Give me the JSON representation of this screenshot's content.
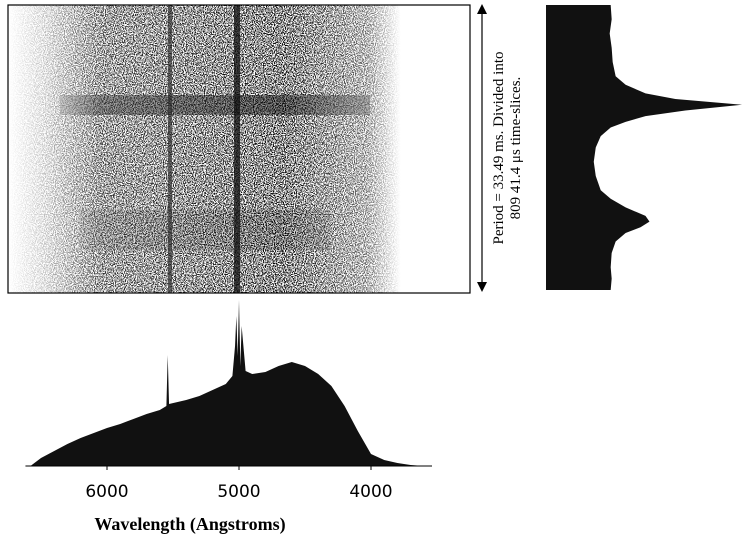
{
  "chart_data": [
    {
      "type": "area",
      "x": [
        6580,
        6500,
        6400,
        6300,
        6200,
        6100,
        6000,
        5900,
        5800,
        5700,
        5600,
        5550,
        5540,
        5530,
        5400,
        5300,
        5200,
        5100,
        5050,
        5030,
        5020,
        5010,
        5000,
        4990,
        4980,
        4950,
        4900,
        4800,
        4700,
        4600,
        4500,
        4400,
        4300,
        4200,
        4100,
        4000,
        3900,
        3800,
        3700,
        3600
      ],
      "values": [
        0,
        8,
        15,
        22,
        28,
        33,
        38,
        42,
        47,
        52,
        56,
        60,
        111,
        62,
        66,
        70,
        76,
        82,
        90,
        120,
        150,
        110,
        166,
        100,
        140,
        95,
        92,
        94,
        100,
        104,
        100,
        92,
        80,
        60,
        35,
        12,
        6,
        3,
        1,
        0
      ],
      "xlim": [
        6750,
        3250
      ],
      "ylim": [
        0,
        170
      ],
      "xticks": [
        6000,
        5000,
        4000
      ],
      "xlabel": "Wavelength (Angstroms)",
      "color": "#111111"
    },
    {
      "type": "profile",
      "x": [
        0,
        0.05,
        0.1,
        0.15,
        0.2,
        0.25,
        0.28,
        0.31,
        0.33,
        0.35,
        0.37,
        0.39,
        0.41,
        0.43,
        0.46,
        0.5,
        0.55,
        0.6,
        0.65,
        0.68,
        0.71,
        0.74,
        0.76,
        0.78,
        0.8,
        0.83,
        0.87,
        0.92,
        0.96,
        1
      ],
      "values": [
        65,
        66,
        64,
        66,
        67,
        70,
        80,
        100,
        130,
        197,
        140,
        100,
        80,
        65,
        55,
        50,
        48,
        50,
        55,
        65,
        80,
        100,
        104,
        95,
        80,
        70,
        66,
        65,
        66,
        65
      ],
      "xlim": [
        0,
        200
      ],
      "ylim": [
        0,
        1
      ],
      "color": "#111111"
    }
  ],
  "annotation": {
    "lines": [
      "Period = 33.49 ms. Divided into",
      "809 41.4 μs time-slices."
    ]
  }
}
